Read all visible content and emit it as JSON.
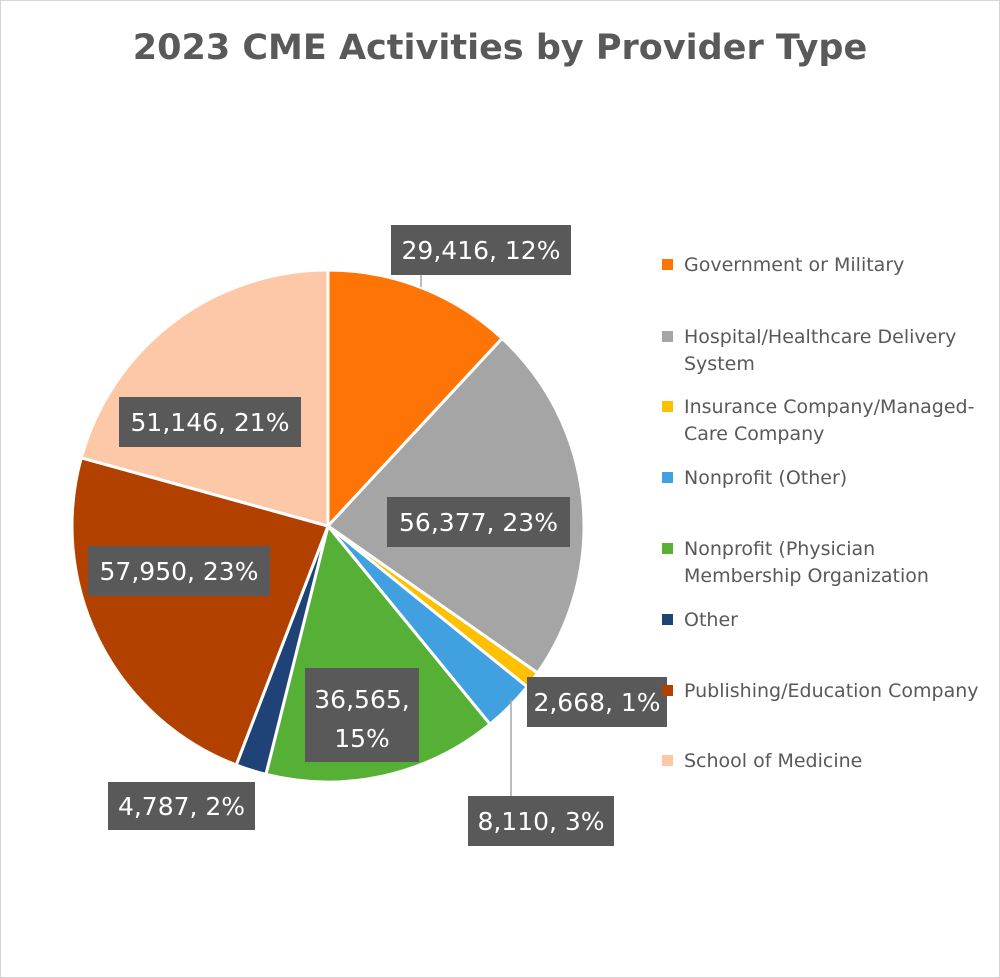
{
  "chart_data": {
    "type": "pie",
    "title": "2023 CME Activities by Provider Type",
    "legend_position": "right",
    "slices": [
      {
        "name": "Government or Military",
        "value": 29416,
        "percent": 12,
        "label": "29,416, 12%",
        "color": "#ff7505"
      },
      {
        "name": "Hospital/Healthcare Delivery System",
        "value": 56377,
        "percent": 23,
        "label": "56,377, 23%",
        "color": "#a5a5a5"
      },
      {
        "name": "Insurance Company/Managed-Care Company",
        "value": 2668,
        "percent": 1,
        "label": "2,668, 1%",
        "color": "#ffc000"
      },
      {
        "name": "Nonprofit (Other)",
        "value": 8110,
        "percent": 3,
        "label": "8,110, 3%",
        "color": "#40a0e0"
      },
      {
        "name": "Nonprofit (Physician Membership Organization",
        "value": 36565,
        "percent": 15,
        "label": "36,565, 15%",
        "color": "#55b035"
      },
      {
        "name": "Other",
        "value": 4787,
        "percent": 2,
        "label": "4,787, 2%",
        "color": "#1f4277"
      },
      {
        "name": "Publishing/Education Company",
        "value": 57950,
        "percent": 23,
        "label": "57,950, 23%",
        "color": "#b24100"
      },
      {
        "name": "School of Medicine",
        "value": 51146,
        "percent": 21,
        "label": "51,146, 21%",
        "color": "#fdc8a8"
      }
    ]
  },
  "legend": [
    {
      "line1": "Government or Military",
      "line2": ""
    },
    {
      "line1": "Hospital/Healthcare Delivery",
      "line2": "System"
    },
    {
      "line1": "Insurance Company/Managed-",
      "line2": "Care Company"
    },
    {
      "line1": "Nonprofit (Other)",
      "line2": ""
    },
    {
      "line1": "Nonprofit (Physician",
      "line2": "Membership Organization"
    },
    {
      "line1": "Other",
      "line2": ""
    },
    {
      "line1": "Publishing/Education Company",
      "line2": ""
    },
    {
      "line1": "School of Medicine",
      "line2": ""
    }
  ]
}
